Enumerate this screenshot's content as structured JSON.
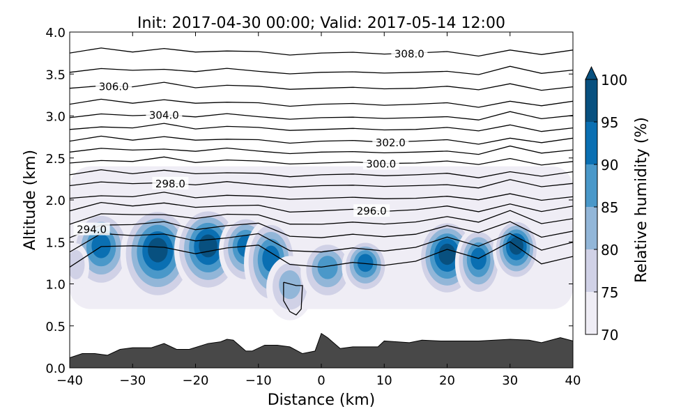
{
  "chart_data": {
    "type": "contour",
    "title": "Init: 2017-04-30 00:00; Valid: 2017-05-14 12:00",
    "xlabel": "Distance (km)",
    "ylabel": "Altitude (km)",
    "xlim": [
      -40,
      40
    ],
    "ylim": [
      0,
      4
    ],
    "xticks": [
      -40,
      -30,
      -20,
      -10,
      0,
      10,
      20,
      30,
      40
    ],
    "xtick_labels": [
      "−40",
      "−30",
      "−20",
      "−10",
      "0",
      "10",
      "20",
      "30",
      "40"
    ],
    "yticks": [
      0,
      0.5,
      1,
      1.5,
      2,
      2.5,
      3,
      3.5,
      4
    ],
    "ytick_labels": [
      "0.0",
      "0.5",
      "1.0",
      "1.5",
      "2.0",
      "2.5",
      "3.0",
      "3.5",
      "4.0"
    ],
    "colorbar": {
      "label": "Relative humidity (%)",
      "levels": [
        70,
        75,
        80,
        85,
        90,
        95,
        100
      ],
      "tick_labels": [
        "70",
        "75",
        "80",
        "85",
        "90",
        "95",
        "100"
      ],
      "colors": [
        "#efedf5",
        "#d0d1e6",
        "#92b6d8",
        "#4a98c9",
        "#0a6fb2",
        "#08507f"
      ],
      "extend": "max"
    },
    "terrain": {
      "color": "#484848",
      "x": [
        -40,
        -38,
        -36,
        -34,
        -32,
        -30,
        -27,
        -25,
        -23,
        -21,
        -18,
        -16,
        -15,
        -14,
        -12,
        -11,
        -9,
        -7,
        -5,
        -3,
        -1,
        0,
        1,
        3,
        5,
        9,
        10,
        12,
        14,
        16,
        19,
        25,
        30,
        33,
        35,
        38,
        40
      ],
      "z": [
        0.12,
        0.17,
        0.17,
        0.15,
        0.22,
        0.24,
        0.24,
        0.29,
        0.22,
        0.22,
        0.29,
        0.31,
        0.34,
        0.33,
        0.2,
        0.2,
        0.27,
        0.27,
        0.25,
        0.17,
        0.2,
        0.41,
        0.36,
        0.23,
        0.25,
        0.25,
        0.32,
        0.31,
        0.3,
        0.33,
        0.32,
        0.32,
        0.34,
        0.33,
        0.3,
        0.36,
        0.32
      ]
    },
    "rh_background": {
      "x": [
        -40,
        40
      ],
      "z": [
        0.7,
        2.4
      ],
      "value": 72
    },
    "rh_cells": [
      {
        "x": -35,
        "z": 1.4,
        "w": 4,
        "h": 0.45,
        "peak": 95
      },
      {
        "x": -26,
        "z": 1.35,
        "w": 5,
        "h": 0.55,
        "peak": 100
      },
      {
        "x": -18,
        "z": 1.4,
        "w": 4.5,
        "h": 0.5,
        "peak": 100
      },
      {
        "x": -12,
        "z": 1.4,
        "w": 3.5,
        "h": 0.4,
        "peak": 95
      },
      {
        "x": -8,
        "z": 1.25,
        "w": 3.5,
        "h": 0.5,
        "peak": 95
      },
      {
        "x": -5,
        "z": 0.95,
        "w": 3,
        "h": 0.35,
        "peak": 85
      },
      {
        "x": 1,
        "z": 1.15,
        "w": 3.5,
        "h": 0.35,
        "peak": 90
      },
      {
        "x": 7,
        "z": 1.2,
        "w": 3,
        "h": 0.3,
        "peak": 95
      },
      {
        "x": 20,
        "z": 1.3,
        "w": 4,
        "h": 0.45,
        "peak": 100
      },
      {
        "x": 25,
        "z": 1.25,
        "w": 3,
        "h": 0.4,
        "peak": 95
      },
      {
        "x": 31,
        "z": 1.4,
        "w": 3,
        "h": 0.35,
        "peak": 100
      },
      {
        "x": -39,
        "z": 1.2,
        "w": 1.5,
        "h": 0.25,
        "peak": 80
      }
    ],
    "isentropes": {
      "x": [
        -40,
        -35,
        -30,
        -25,
        -20,
        -15,
        -10,
        -5,
        0,
        5,
        10,
        15,
        20,
        25,
        30,
        35,
        40
      ],
      "perturbation_km": [
        0,
        0.05,
        0.02,
        0.06,
        0.01,
        0.04,
        0.02,
        -0.02,
        0.0,
        0.01,
        -0.01,
        0.0,
        0.02,
        -0.03,
        0.06,
        -0.02,
        0.03
      ],
      "low_level_perturbation_km": [
        -0.15,
        0.05,
        0.08,
        0.05,
        0.0,
        0.03,
        0.1,
        -0.1,
        -0.15,
        -0.1,
        -0.12,
        -0.08,
        0.05,
        -0.02,
        0.08,
        -0.1,
        -0.05
      ],
      "levels": [
        {
          "theta": 292,
          "z": 1.35
        },
        {
          "theta": 293,
          "z": 1.5
        },
        {
          "theta": 294,
          "z": 1.64,
          "label": "294.0",
          "label_x": -36.5
        },
        {
          "theta": 295,
          "z": 1.77
        },
        {
          "theta": 296,
          "z": 1.9,
          "label": "296.0",
          "label_x": 8
        },
        {
          "theta": 297,
          "z": 2.02
        },
        {
          "theta": 298,
          "z": 2.17,
          "label": "298.0",
          "label_x": -24
        },
        {
          "theta": 299,
          "z": 2.3
        },
        {
          "theta": 300,
          "z": 2.44,
          "label": "300.0",
          "label_x": 9.5
        },
        {
          "theta": 301,
          "z": 2.57
        },
        {
          "theta": 302,
          "z": 2.7,
          "label": "302.0",
          "label_x": 11
        },
        {
          "theta": 303,
          "z": 2.84
        },
        {
          "theta": 304,
          "z": 2.98,
          "label": "304.0",
          "label_x": -25
        },
        {
          "theta": 305,
          "z": 3.14
        },
        {
          "theta": 306,
          "z": 3.33,
          "label": "306.0",
          "label_x": -33
        },
        {
          "theta": 307,
          "z": 3.52
        },
        {
          "theta": 308,
          "z": 3.75,
          "label": "308.0",
          "label_x": 14
        }
      ]
    }
  }
}
